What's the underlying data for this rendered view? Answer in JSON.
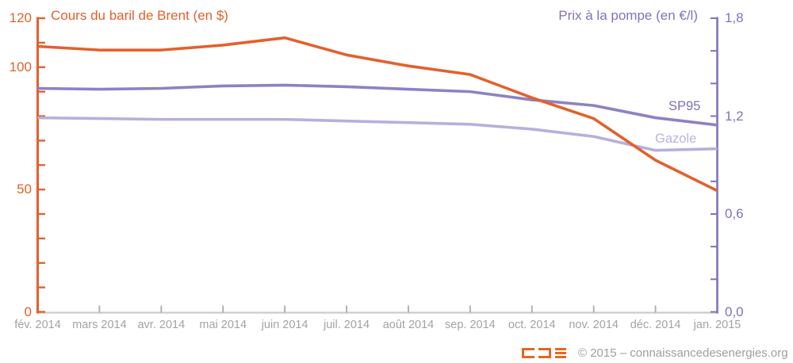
{
  "chart_data": {
    "type": "line",
    "title_left_axis": "Cours du baril de Brent (en $)",
    "title_right_axis": "Prix à la pompe (en €/l)",
    "categories": [
      "fév. 2014",
      "mars 2014",
      "avr. 2014",
      "mai 2014",
      "juin 2014",
      "juil. 2014",
      "août 2014",
      "sep. 2014",
      "oct. 2014",
      "nov. 2014",
      "déc. 2014",
      "jan. 2015"
    ],
    "series": [
      {
        "id": "brent",
        "name": "Cours du baril de Brent (en $)",
        "axis": "left",
        "color": "#e2612d",
        "values": [
          108.5,
          107,
          107,
          109,
          112,
          105,
          100.5,
          97,
          87.5,
          79,
          62,
          49.5
        ]
      },
      {
        "id": "sp95",
        "name": "SP95",
        "axis": "right",
        "color": "#8a83c3",
        "values": [
          1.37,
          1.365,
          1.37,
          1.385,
          1.39,
          1.38,
          1.365,
          1.35,
          1.3,
          1.265,
          1.19,
          1.145
        ]
      },
      {
        "id": "gazole",
        "name": "Gazole",
        "axis": "right",
        "color": "#b6b0dd",
        "values": [
          1.19,
          1.185,
          1.18,
          1.18,
          1.18,
          1.17,
          1.16,
          1.15,
          1.12,
          1.075,
          0.99,
          1.0
        ]
      }
    ],
    "left_axis": {
      "min": 0,
      "max": 120,
      "tick_step": 10,
      "color": "#e2612d",
      "labeled_ticks": [
        {
          "text": "120",
          "value": 120
        },
        {
          "text": "100",
          "value": 100
        },
        {
          "text": "50",
          "value": 50
        },
        {
          "text": "0",
          "value": 0
        }
      ]
    },
    "right_axis": {
      "min": 0,
      "max": 1.8,
      "tick_step": 0.2,
      "color": "#7d75ba",
      "labeled_ticks": [
        {
          "text": "1,8",
          "value": 1.8
        },
        {
          "text": "1,2",
          "value": 1.2
        },
        {
          "text": "0,6",
          "value": 0.6
        },
        {
          "text": "0,0",
          "value": 0
        }
      ]
    },
    "x_axis": {
      "color": "#cccccc",
      "tick_color": "#ababab",
      "label_color": "#a3a3a3"
    },
    "grid": false,
    "legend_position": "inline-right",
    "annotations": [
      {
        "text": "SP95"
      },
      {
        "text": "Gazole"
      }
    ]
  },
  "footer": {
    "logo_icon": "connaissance-des-energies-logo",
    "copyright": "© 2015 – connaissancedesenergies.org"
  }
}
